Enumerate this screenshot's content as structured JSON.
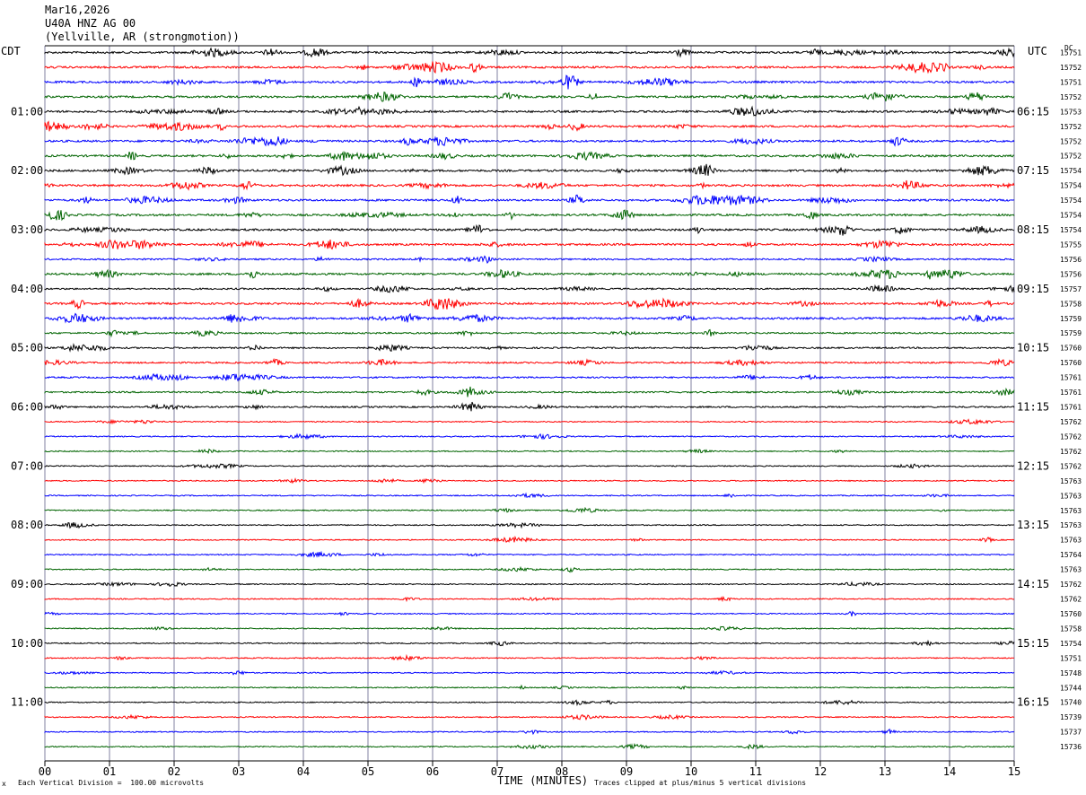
{
  "header": {
    "date": "Mar16,2026",
    "station": "U40A HNZ AG 00",
    "location": "(Yellville, AR (strongmotion))"
  },
  "labels": {
    "left_tz": "CDT",
    "right_tz": "UTC",
    "dc": "DC"
  },
  "footer": {
    "scale": "Each Vertical Division =  100.00 microvolts",
    "xlabel": "TIME (MINUTES)",
    "clip": "Traces clipped at plus/minus 5 vertical divisions",
    "corner_mark": "x"
  },
  "chart_data": {
    "type": "line",
    "x_range": [
      0,
      15
    ],
    "x_ticks": [
      "00",
      "01",
      "02",
      "03",
      "04",
      "05",
      "06",
      "07",
      "08",
      "09",
      "10",
      "11",
      "12",
      "13",
      "14",
      "15"
    ],
    "trace_colors": [
      "#000000",
      "#ff0000",
      "#0000ff",
      "#006400"
    ],
    "left_hour_labels": [
      "01:00",
      "02:00",
      "03:00",
      "04:00",
      "05:00",
      "06:00",
      "07:00",
      "08:00",
      "09:00",
      "10:00",
      "11:00"
    ],
    "right_hour_labels": [
      "06:15",
      "07:15",
      "08:15",
      "09:15",
      "10:15",
      "11:15",
      "12:15",
      "13:15",
      "14:15",
      "15:15",
      "16:15"
    ],
    "dc_values": [
      "15751",
      "15752",
      "15751",
      "15752",
      "15753",
      "15752",
      "15752",
      "15752",
      "15754",
      "15754",
      "15754",
      "15754",
      "15754",
      "15755",
      "15756",
      "15756",
      "15757",
      "15758",
      "15759",
      "15759",
      "15760",
      "15760",
      "15761",
      "15761",
      "15761",
      "15762",
      "15762",
      "15762",
      "15762",
      "15763",
      "15763",
      "15763",
      "15763",
      "15763",
      "15764",
      "15763",
      "15762",
      "15762",
      "15760",
      "15758",
      "15754",
      "15751",
      "15748",
      "15744",
      "15740",
      "15739",
      "15737",
      "15736"
    ],
    "trace_activity": [
      3,
      3,
      3,
      3,
      3,
      3,
      3,
      3,
      3,
      3,
      3,
      3,
      3,
      3,
      2,
      3,
      2,
      3,
      3,
      2,
      2,
      2,
      2,
      2,
      2,
      1,
      1,
      1,
      1,
      1,
      1,
      1,
      1,
      1,
      1,
      1,
      1,
      1,
      1,
      1,
      1,
      1,
      1,
      1,
      1,
      1,
      1,
      1
    ]
  }
}
